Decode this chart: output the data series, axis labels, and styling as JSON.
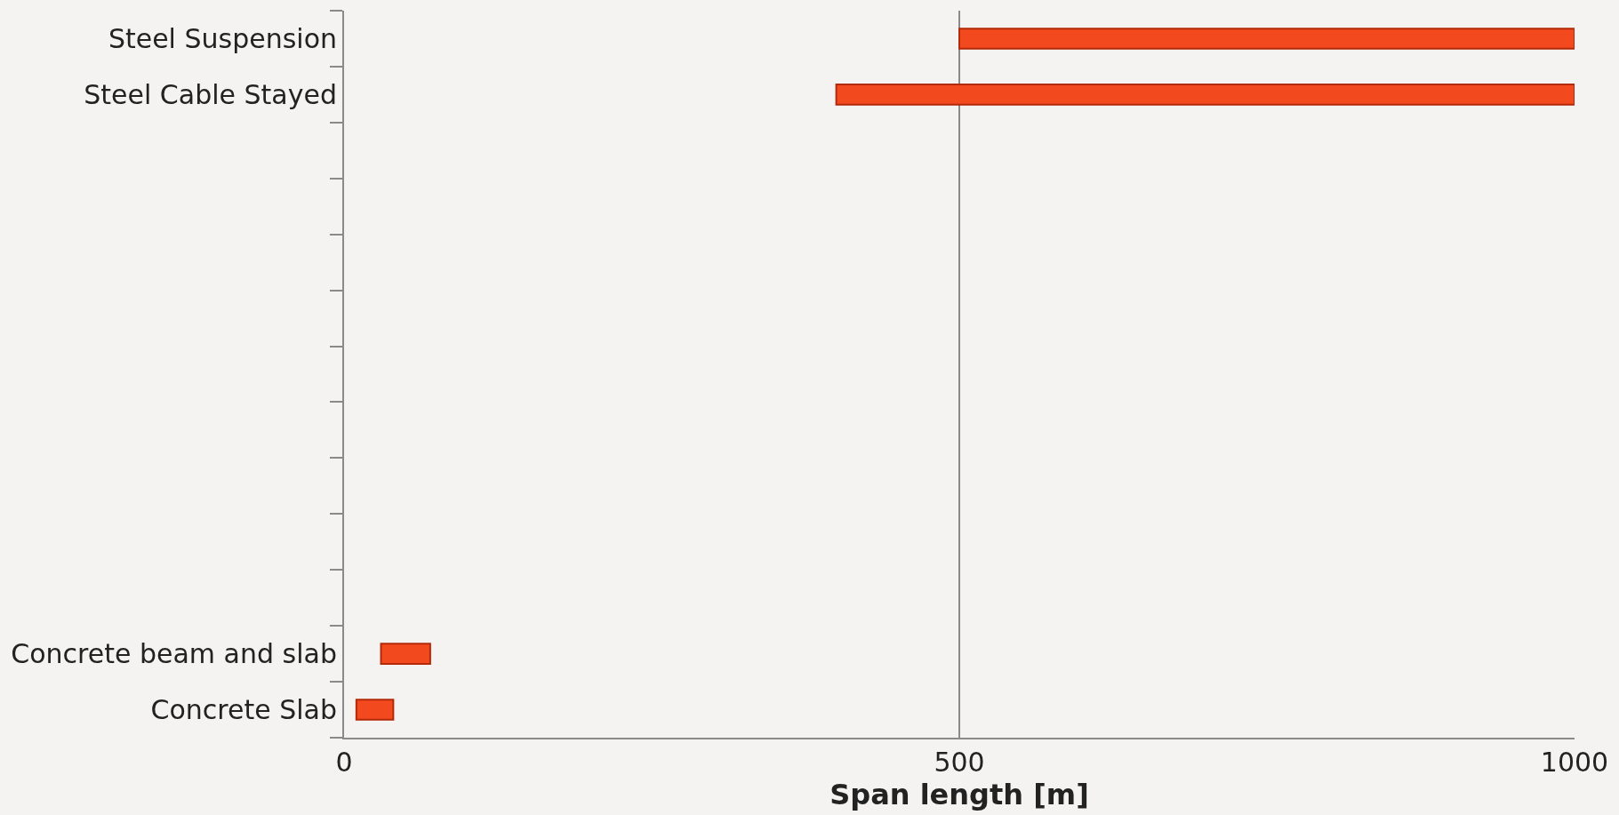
{
  "chart_data": {
    "type": "bar",
    "orientation": "horizontal",
    "xlabel": "Span length [m]",
    "categories": [
      "Steel Suspension",
      "Steel Cable Stayed",
      null,
      null,
      null,
      null,
      null,
      null,
      null,
      null,
      null,
      "Concrete beam and slab",
      "Concrete Slab"
    ],
    "base": [
      500,
      400,
      null,
      null,
      null,
      null,
      null,
      null,
      null,
      null,
      null,
      30,
      10
    ],
    "values": [
      500,
      600,
      null,
      null,
      null,
      null,
      null,
      null,
      null,
      null,
      null,
      40,
      30
    ],
    "color": "#f24a1e",
    "xlim": [
      0,
      1000
    ],
    "xticks": [
      0,
      500,
      1000
    ],
    "grid": "x",
    "legend": false
  }
}
